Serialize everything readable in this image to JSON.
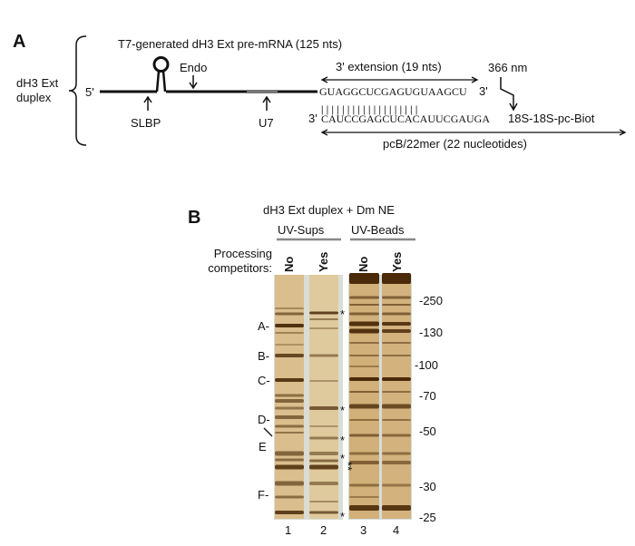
{
  "panel_a": {
    "label": "A",
    "title": "T7-generated dH3 Ext pre-mRNA (125 nts)",
    "duplex_label_line1": "dH3 Ext",
    "duplex_label_line2": "duplex",
    "five_prime": "5'",
    "endo_label": "Endo",
    "slbp_label": "SLBP",
    "u7_label": "U7",
    "extension_label": "3' extension (19 nts)",
    "top_sequence": "GUAGGCUCGAGUGUAAGCU",
    "top_three_prime": "3'",
    "bottom_three_prime": "3'",
    "bottom_sequence": "CAUCCGAGCUCACAUUCGAUGA",
    "bottom_suffix": "18S-18S-pc-Biot",
    "uv_label": "366 nm",
    "oligo_label": "pcB/22mer (22 nucleotides)",
    "base_pairs": "| | | | | | | | | | | | | | | | | | |"
  },
  "panel_b": {
    "label": "B",
    "title": "dH3 Ext duplex + Dm NE",
    "group_sups": "UV-Sups",
    "group_beads": "UV-Beads",
    "row_label_line1": "Processing",
    "row_label_line2": "competitors:",
    "lane_conditions": [
      "No",
      "Yes",
      "No",
      "Yes"
    ],
    "lane_numbers": [
      "1",
      "2",
      "3",
      "4"
    ],
    "band_labels": [
      "A-",
      "B-",
      "C-",
      "D-",
      "E",
      "F-"
    ],
    "asterisks": [
      "*",
      "*",
      "*",
      "**",
      "*",
      "*"
    ],
    "mw_markers": [
      "-250",
      "-130",
      "-100",
      "-70",
      "-50",
      "-30",
      "-25"
    ]
  }
}
